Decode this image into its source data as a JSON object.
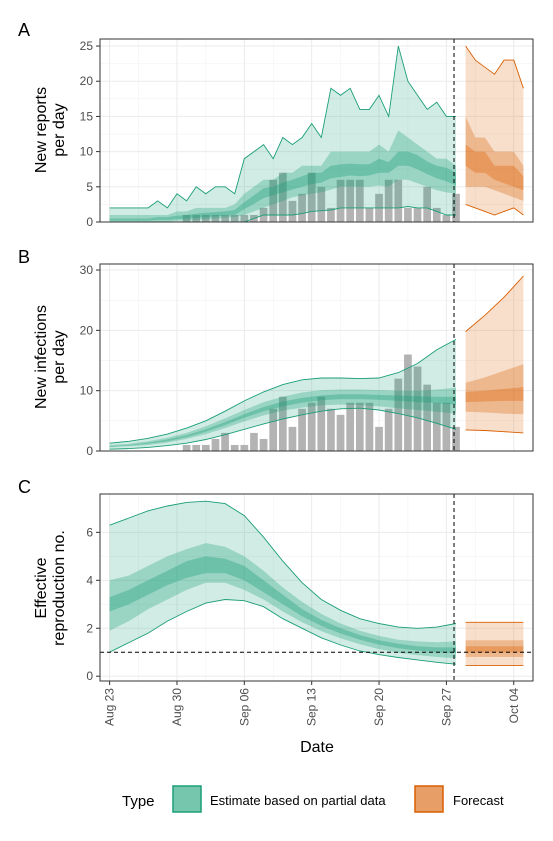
{
  "colors": {
    "estimate": "#1b9e77",
    "forecast": "#d95f02",
    "bars": "#b3b3b3",
    "grid": "#ebebeb"
  },
  "xaxis": {
    "title": "Date",
    "ticks": [
      "Aug 23",
      "Aug 30",
      "Sep 06",
      "Sep 13",
      "Sep 20",
      "Sep 27",
      "Oct 04"
    ],
    "range": [
      "2020-08-22",
      "2020-10-06"
    ],
    "today": "2020-09-28"
  },
  "legend": {
    "title": "Type",
    "items": [
      {
        "label": "Estimate based on partial data",
        "key": "estimate"
      },
      {
        "label": "Forecast",
        "key": "forecast"
      }
    ]
  },
  "chart_data": [
    {
      "panel": "A",
      "type": "area",
      "ylabel": [
        "New reports",
        "per day"
      ],
      "ylim": [
        0,
        26
      ],
      "yticks": [
        0,
        5,
        10,
        15,
        20,
        25
      ],
      "bars": {
        "dates": [
          "2020-08-31",
          "2020-09-01",
          "2020-09-02",
          "2020-09-03",
          "2020-09-04",
          "2020-09-05",
          "2020-09-06",
          "2020-09-07",
          "2020-09-08",
          "2020-09-09",
          "2020-09-10",
          "2020-09-11",
          "2020-09-12",
          "2020-09-13",
          "2020-09-14",
          "2020-09-15",
          "2020-09-16",
          "2020-09-17",
          "2020-09-18",
          "2020-09-19",
          "2020-09-20",
          "2020-09-21",
          "2020-09-22",
          "2020-09-23",
          "2020-09-24",
          "2020-09-25",
          "2020-09-26",
          "2020-09-27",
          "2020-09-28"
        ],
        "values": [
          1,
          1,
          1,
          1,
          1,
          1,
          1,
          1,
          2,
          6,
          7,
          3,
          4,
          7,
          5,
          2,
          6,
          6,
          6,
          2,
          4,
          6,
          6,
          2,
          2,
          5,
          2,
          1,
          4
        ]
      },
      "estimate": {
        "dates": [
          "2020-08-23",
          "2020-08-27",
          "2020-08-28",
          "2020-08-29",
          "2020-08-30",
          "2020-08-31",
          "2020-09-01",
          "2020-09-02",
          "2020-09-03",
          "2020-09-04",
          "2020-09-05",
          "2020-09-06",
          "2020-09-07",
          "2020-09-08",
          "2020-09-09",
          "2020-09-10",
          "2020-09-11",
          "2020-09-12",
          "2020-09-13",
          "2020-09-14",
          "2020-09-15",
          "2020-09-16",
          "2020-09-17",
          "2020-09-18",
          "2020-09-19",
          "2020-09-20",
          "2020-09-21",
          "2020-09-22",
          "2020-09-23",
          "2020-09-24",
          "2020-09-25",
          "2020-09-26",
          "2020-09-27",
          "2020-09-28"
        ],
        "upper90": [
          2,
          2,
          3,
          2,
          4,
          3,
          5,
          4,
          5,
          5,
          4,
          9,
          10,
          11,
          9,
          12,
          11,
          12,
          14,
          12,
          19,
          18,
          19,
          16,
          16,
          18,
          15,
          25,
          20,
          18,
          16,
          17,
          15,
          15
        ],
        "upper50": [
          1,
          1,
          1,
          1,
          1.5,
          1.5,
          2,
          2,
          2,
          2,
          2.5,
          4,
          5,
          6,
          6,
          7,
          7,
          8,
          8,
          8,
          10,
          10,
          10,
          10,
          10,
          11,
          10,
          13,
          12,
          11,
          10,
          9,
          9,
          8
        ],
        "upper20": [
          0.5,
          0.5,
          0.7,
          0.7,
          0.9,
          1,
          1.2,
          1.3,
          1.4,
          1.5,
          1.7,
          2.8,
          3.8,
          4.8,
          5,
          5.6,
          6,
          6.5,
          7,
          7,
          8,
          8.2,
          8.3,
          8.2,
          8.2,
          9,
          8.5,
          10,
          10,
          9.5,
          8.6,
          8,
          7.7,
          7
        ],
        "lower20": [
          0.2,
          0.2,
          0.3,
          0.3,
          0.4,
          0.5,
          0.6,
          0.7,
          0.8,
          0.9,
          1,
          1.8,
          2.6,
          3.4,
          3.8,
          4.2,
          4.6,
          5,
          5.4,
          5.6,
          6.2,
          6.4,
          6.6,
          6.5,
          6.6,
          7,
          7,
          8,
          8,
          7.5,
          6.8,
          6.2,
          5.8,
          5.2
        ],
        "lower50": [
          0,
          0,
          0,
          0,
          0.2,
          0.2,
          0.3,
          0.4,
          0.5,
          0.6,
          0.7,
          1,
          1.5,
          2,
          2.5,
          3,
          3.5,
          3.8,
          4,
          4.2,
          4.6,
          5,
          5,
          5,
          5,
          5.2,
          5,
          6,
          6,
          5.5,
          5,
          4.5,
          4.2,
          4
        ],
        "lower90": [
          0,
          0,
          0,
          0,
          0,
          0,
          0,
          0,
          0,
          0,
          0,
          0,
          0.5,
          1,
          1,
          1,
          1,
          1.2,
          1.5,
          1.6,
          1.7,
          2,
          2,
          2,
          2,
          2,
          2,
          2,
          2.2,
          2,
          2,
          1.5,
          1,
          1
        ]
      },
      "forecast": {
        "dates": [
          "2020-09-29",
          "2020-09-30",
          "2020-10-01",
          "2020-10-02",
          "2020-10-03",
          "2020-10-04",
          "2020-10-05"
        ],
        "upper90": [
          25,
          23,
          22,
          21,
          23,
          23,
          19
        ],
        "upper50": [
          15,
          12,
          12,
          10,
          10,
          10,
          8
        ],
        "upper20": [
          11,
          10,
          10,
          8,
          8,
          8,
          6.5
        ],
        "lower20": [
          8,
          7,
          7,
          6,
          5.5,
          5,
          4.5
        ],
        "lower50": [
          5,
          5,
          5,
          4.5,
          4,
          3.5,
          3
        ],
        "lower90": [
          2.5,
          2,
          1.5,
          1,
          1.5,
          2,
          1
        ]
      }
    },
    {
      "panel": "B",
      "type": "area",
      "ylabel": [
        "New infections",
        "per day"
      ],
      "ylim": [
        0,
        31
      ],
      "yticks": [
        0,
        10,
        20,
        30
      ],
      "bars": {
        "dates": [
          "2020-08-31",
          "2020-09-01",
          "2020-09-02",
          "2020-09-03",
          "2020-09-04",
          "2020-09-05",
          "2020-09-06",
          "2020-09-07",
          "2020-09-08",
          "2020-09-09",
          "2020-09-10",
          "2020-09-11",
          "2020-09-12",
          "2020-09-13",
          "2020-09-14",
          "2020-09-15",
          "2020-09-16",
          "2020-09-17",
          "2020-09-18",
          "2020-09-19",
          "2020-09-20",
          "2020-09-21",
          "2020-09-22",
          "2020-09-23",
          "2020-09-24",
          "2020-09-25",
          "2020-09-26",
          "2020-09-27",
          "2020-09-28"
        ],
        "values": [
          1,
          1,
          1,
          2,
          3,
          1,
          1,
          3,
          2,
          7,
          9,
          4,
          7,
          8,
          9,
          7,
          6,
          8,
          8,
          8,
          4,
          7,
          12,
          16,
          14,
          11,
          8,
          8,
          4
        ]
      },
      "estimate": {
        "dates": [
          "2020-08-23",
          "2020-08-25",
          "2020-08-27",
          "2020-08-29",
          "2020-08-31",
          "2020-09-02",
          "2020-09-04",
          "2020-09-06",
          "2020-09-08",
          "2020-09-10",
          "2020-09-12",
          "2020-09-14",
          "2020-09-16",
          "2020-09-18",
          "2020-09-20",
          "2020-09-22",
          "2020-09-24",
          "2020-09-26",
          "2020-09-28"
        ],
        "upper90": [
          1.3,
          1.6,
          2.1,
          2.8,
          3.8,
          5,
          6.6,
          8.3,
          9.8,
          11,
          11.8,
          12.1,
          12.1,
          12,
          12.1,
          13,
          14.5,
          16.8,
          18.5
        ],
        "upper50": [
          1,
          1.2,
          1.6,
          2.2,
          3,
          4.1,
          5.4,
          6.8,
          8.1,
          9,
          9.7,
          10.1,
          10.2,
          10.2,
          10.1,
          10,
          10,
          10.2,
          10.5
        ],
        "upper20": [
          0.8,
          1,
          1.4,
          1.9,
          2.6,
          3.6,
          4.8,
          6.1,
          7.3,
          8.2,
          8.8,
          9.2,
          9.4,
          9.4,
          9.3,
          9.2,
          9.1,
          9,
          9
        ],
        "lower20": [
          0.7,
          0.9,
          1.2,
          1.6,
          2.3,
          3.2,
          4.3,
          5.5,
          6.6,
          7.4,
          8,
          8.4,
          8.6,
          8.6,
          8.5,
          8.3,
          8.1,
          7.9,
          7.7
        ],
        "lower50": [
          0.6,
          0.8,
          1,
          1.4,
          2,
          2.8,
          3.8,
          4.9,
          5.9,
          6.7,
          7.2,
          7.6,
          7.7,
          7.6,
          7.4,
          7.1,
          6.8,
          6.5,
          6.2
        ],
        "lower90": [
          0.3,
          0.4,
          0.6,
          0.9,
          1.3,
          1.9,
          2.7,
          3.6,
          4.5,
          5.3,
          6,
          6.6,
          7,
          7.1,
          6.8,
          6.2,
          5.5,
          4.6,
          3.6
        ]
      },
      "forecast": {
        "dates": [
          "2020-09-29",
          "2020-10-01",
          "2020-10-03",
          "2020-10-05"
        ],
        "upper90": [
          19.8,
          22.5,
          25.5,
          29
        ],
        "upper50": [
          11.3,
          12.2,
          13.3,
          14.4
        ],
        "upper20": [
          9.8,
          10,
          10.3,
          10.6
        ],
        "lower20": [
          8.1,
          8.2,
          8.3,
          8.3
        ],
        "lower50": [
          6.5,
          6.4,
          6.2,
          6.1
        ],
        "lower90": [
          3.5,
          3.4,
          3.2,
          3
        ]
      }
    },
    {
      "panel": "C",
      "type": "area",
      "ylabel": [
        "Effective",
        "reproduction no."
      ],
      "ylim": [
        -0.2,
        7.6
      ],
      "yticks": [
        0,
        2,
        4,
        6
      ],
      "hline": 1,
      "estimate": {
        "dates": [
          "2020-08-23",
          "2020-08-25",
          "2020-08-27",
          "2020-08-29",
          "2020-08-31",
          "2020-09-02",
          "2020-09-04",
          "2020-09-06",
          "2020-09-08",
          "2020-09-10",
          "2020-09-12",
          "2020-09-14",
          "2020-09-16",
          "2020-09-18",
          "2020-09-20",
          "2020-09-22",
          "2020-09-24",
          "2020-09-26",
          "2020-09-28"
        ],
        "upper90": [
          6.3,
          6.6,
          6.9,
          7.1,
          7.25,
          7.3,
          7.2,
          6.7,
          5.8,
          4.8,
          3.9,
          3.2,
          2.75,
          2.4,
          2.2,
          2.05,
          2,
          2.05,
          2.2
        ],
        "upper50": [
          4,
          4.2,
          4.6,
          5,
          5.3,
          5.55,
          5.4,
          5,
          4.4,
          3.7,
          3.1,
          2.6,
          2.2,
          1.9,
          1.68,
          1.52,
          1.45,
          1.42,
          1.45
        ],
        "upper20": [
          3.3,
          3.6,
          4,
          4.4,
          4.8,
          5,
          4.9,
          4.6,
          4,
          3.4,
          2.8,
          2.35,
          2,
          1.72,
          1.5,
          1.35,
          1.25,
          1.2,
          1.2
        ],
        "lower20": [
          2.7,
          3,
          3.4,
          3.8,
          4.1,
          4.3,
          4.3,
          4,
          3.5,
          3,
          2.5,
          2.1,
          1.78,
          1.52,
          1.32,
          1.17,
          1.07,
          1.0,
          0.97
        ],
        "lower50": [
          1.9,
          2.3,
          2.8,
          3.2,
          3.6,
          3.9,
          3.9,
          3.6,
          3.2,
          2.7,
          2.25,
          1.88,
          1.58,
          1.33,
          1.13,
          0.98,
          0.88,
          0.8,
          0.75
        ],
        "lower90": [
          1,
          1.4,
          1.8,
          2.3,
          2.7,
          3.05,
          3.2,
          3.15,
          2.9,
          2.4,
          2,
          1.6,
          1.3,
          1.05,
          0.9,
          0.78,
          0.68,
          0.58,
          0.5
        ]
      },
      "forecast": {
        "dates": [
          "2020-09-29",
          "2020-10-05"
        ],
        "upper90": [
          2.25,
          2.25
        ],
        "upper50": [
          1.5,
          1.5
        ],
        "upper20": [
          1.25,
          1.25
        ],
        "lower20": [
          1.0,
          1.0
        ],
        "lower50": [
          0.8,
          0.8
        ],
        "lower90": [
          0.45,
          0.45
        ]
      }
    }
  ]
}
